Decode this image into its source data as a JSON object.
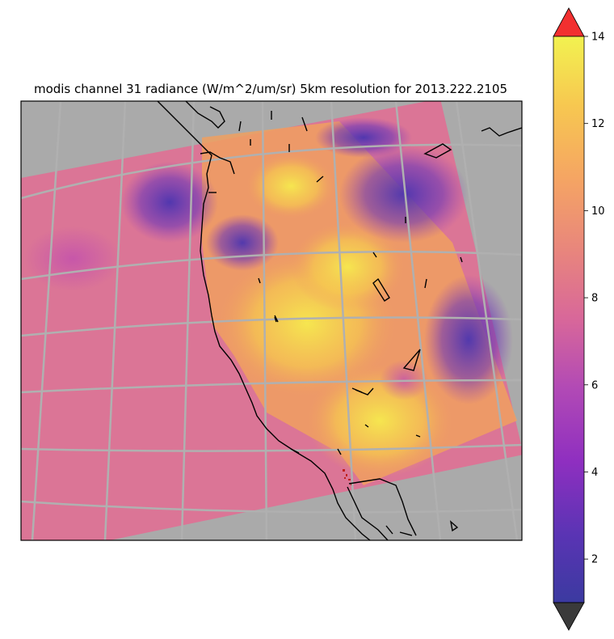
{
  "map": {
    "title": "modis channel 31 radiance (W/m^2/um/sr) 5km resolution for 2013.222.2105",
    "variable": "modis channel 31 radiance",
    "units": "W/m^2/um/sr",
    "resolution": "5km",
    "granule": "2013.222.2105",
    "region": "US West Coast",
    "projection": "conic",
    "background_color": "#aaaaaa",
    "graticule_color": "#b0b0b0",
    "coastline_color": "#000000"
  },
  "colorbar": {
    "cmap": "plasma-like",
    "vmin": 1,
    "vmax": 14,
    "ticks": [
      "2",
      "4",
      "6",
      "8",
      "10",
      "12",
      "14"
    ],
    "over_color": "#f23030",
    "under_color": "#3a3a3a",
    "colors": [
      "#3b3aa0",
      "#6a33b8",
      "#8f2fc0",
      "#b24ab5",
      "#cf5ea3",
      "#e27a8b",
      "#ef9670",
      "#f7b45e",
      "#f6d34c",
      "#f2f250"
    ]
  }
}
